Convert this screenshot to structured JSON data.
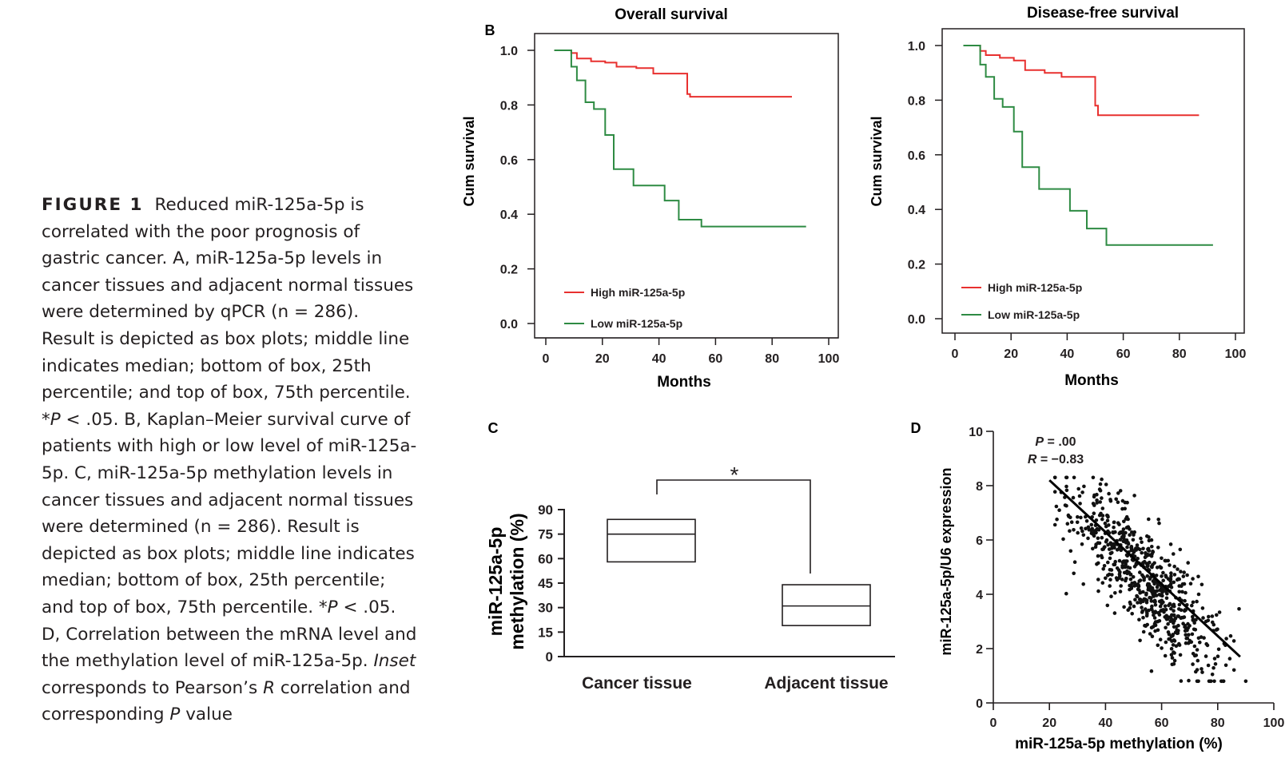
{
  "caption": {
    "label": "FIGURE 1",
    "segments": [
      {
        "t": "Reduced miR-125a-5p is correlated with the poor prognosis of gastric cancer. A, miR-125a-5p levels in cancer tissues and adjacent normal tissues were determined by qPCR (n = 286). Result is depicted as box plots; middle line indicates median; bottom of box, 25th percentile; and top of box, 75th percentile. *"
      },
      {
        "t": "P",
        "i": true
      },
      {
        "t": " < .05. B, Kaplan–Meier survival curve of patients with high or low level of miR-125a-5p. C, miR-125a-5p methylation levels in cancer tissues and adjacent normal tissues were determined (n = 286). Result is depicted as box plots; middle line indicates median; bottom of box, 25th percentile; and top of box, 75th percentile. *"
      },
      {
        "t": "P",
        "i": true
      },
      {
        "t": " < .05. D, Correlation between the mRNA level and the methylation level of miR-125a-5p. "
      },
      {
        "t": "Inset",
        "i": true
      },
      {
        "t": " corresponds to Pearson’s "
      },
      {
        "t": "R",
        "i": true
      },
      {
        "t": " correlation and corresponding "
      },
      {
        "t": "P",
        "i": true
      },
      {
        "t": " value"
      }
    ]
  },
  "chart_data": [
    {
      "panel": "B",
      "type": "line",
      "title": "Overall survival",
      "xlabel": "Months",
      "ylabel": "Cum survival",
      "xlim": [
        0,
        100
      ],
      "ylim": [
        0,
        1
      ],
      "xticks": [
        0,
        20,
        40,
        60,
        80,
        100
      ],
      "yticks": [
        "0.0",
        "0.2",
        "0.4",
        "0.6",
        "0.8",
        "1.0"
      ],
      "legend": "bottom-left",
      "series": [
        {
          "name": "High miR-125a-5p",
          "color": "#e8302f",
          "x": [
            3,
            9,
            9,
            11,
            11,
            16,
            16,
            21,
            21,
            25,
            25,
            32,
            32,
            38,
            38,
            50,
            50,
            51,
            51,
            87
          ],
          "y": [
            1.0,
            1.0,
            0.99,
            0.99,
            0.97,
            0.97,
            0.96,
            0.96,
            0.955,
            0.955,
            0.94,
            0.94,
            0.935,
            0.935,
            0.915,
            0.915,
            0.84,
            0.84,
            0.83,
            0.83
          ]
        },
        {
          "name": "Low miR-125a-5p",
          "color": "#2e8b43",
          "x": [
            3,
            9,
            9,
            11,
            11,
            14,
            14,
            17,
            17,
            21,
            21,
            24,
            24,
            31,
            31,
            42,
            42,
            47,
            47,
            55,
            55,
            92
          ],
          "y": [
            1.0,
            1.0,
            0.94,
            0.94,
            0.89,
            0.89,
            0.81,
            0.81,
            0.785,
            0.785,
            0.69,
            0.69,
            0.565,
            0.565,
            0.505,
            0.505,
            0.45,
            0.45,
            0.38,
            0.38,
            0.355,
            0.355
          ]
        }
      ]
    },
    {
      "panel": "",
      "type": "line",
      "title": "Disease-free survival",
      "xlabel": "Months",
      "ylabel": "Cum survival",
      "xlim": [
        0,
        100
      ],
      "ylim": [
        0,
        1
      ],
      "xticks": [
        0,
        20,
        40,
        60,
        80,
        100
      ],
      "yticks": [
        "0.0",
        "0.2",
        "0.4",
        "0.6",
        "0.8",
        "1.0"
      ],
      "legend": "bottom-left",
      "series": [
        {
          "name": "High miR-125a-5p",
          "color": "#e8302f",
          "x": [
            3,
            9,
            9,
            11,
            11,
            16,
            16,
            21,
            21,
            25,
            25,
            32,
            32,
            38,
            38,
            50,
            50,
            51,
            51,
            87
          ],
          "y": [
            1.0,
            1.0,
            0.98,
            0.98,
            0.965,
            0.965,
            0.955,
            0.955,
            0.945,
            0.945,
            0.91,
            0.91,
            0.9,
            0.9,
            0.885,
            0.885,
            0.78,
            0.78,
            0.745,
            0.745
          ]
        },
        {
          "name": "Low miR-125a-5p",
          "color": "#2e8b43",
          "x": [
            3,
            9,
            9,
            11,
            11,
            14,
            14,
            17,
            17,
            21,
            21,
            24,
            24,
            30,
            30,
            41,
            41,
            47,
            47,
            54,
            54,
            92
          ],
          "y": [
            1.0,
            1.0,
            0.93,
            0.93,
            0.885,
            0.885,
            0.805,
            0.805,
            0.775,
            0.775,
            0.685,
            0.685,
            0.555,
            0.555,
            0.475,
            0.475,
            0.395,
            0.395,
            0.33,
            0.33,
            0.27,
            0.27
          ]
        }
      ]
    },
    {
      "panel": "C",
      "type": "box",
      "xlabel": "",
      "ylabel": [
        "miR-125a-5p",
        "methylation (%)"
      ],
      "ylim": [
        0,
        90
      ],
      "yticks": [
        0,
        15,
        30,
        45,
        60,
        75,
        90
      ],
      "significance": "*",
      "categories": [
        "Cancer tissue",
        "Adjacent tissue"
      ],
      "boxes": [
        {
          "name": "Cancer tissue",
          "q1": 58,
          "median": 75,
          "q3": 84
        },
        {
          "name": "Adjacent tissue",
          "q1": 19,
          "median": 31,
          "q3": 44
        }
      ]
    },
    {
      "panel": "D",
      "type": "scatter",
      "xlabel": "miR-125a-5p methylation (%)",
      "ylabel": "miR-125a-5p/U6 expression",
      "xlim": [
        0,
        100
      ],
      "ylim": [
        0,
        10
      ],
      "xticks": [
        0,
        20,
        40,
        60,
        80,
        100
      ],
      "yticks": [
        0,
        2,
        4,
        6,
        8,
        10
      ],
      "inset": [
        {
          "label": "P",
          "value": " = .00"
        },
        {
          "label": "R",
          "value": " = −0.83"
        }
      ],
      "fit_line": {
        "x": [
          20,
          88
        ],
        "y": [
          8.2,
          1.7
        ]
      },
      "n_points": 700,
      "x_mean": 55,
      "x_sd": 14,
      "y_intercept": 10.1,
      "y_slope": -0.104,
      "y_noise_sd": 1.0,
      "x_range": [
        22,
        90
      ],
      "y_range": [
        0.8,
        8.3
      ]
    }
  ]
}
